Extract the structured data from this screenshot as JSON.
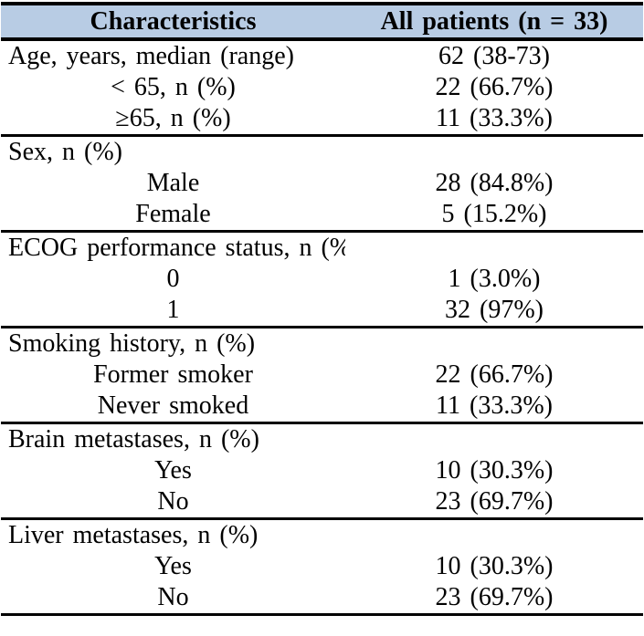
{
  "table": {
    "title_semantic": "Patient baseline characteristics table",
    "header": {
      "col1": "Characteristics",
      "col2": "All patients (n = 33)"
    },
    "sections": [
      {
        "rows": [
          {
            "label": "Age, years, median (range)",
            "value": "62 (38-73)",
            "indent": false
          },
          {
            "label": "< 65, n (%)",
            "value": "22 (66.7%)",
            "indent": true
          },
          {
            "label": "≥65, n (%)",
            "value": "11 (33.3%)",
            "indent": true
          }
        ]
      },
      {
        "rows": [
          {
            "label": "Sex, n (%)",
            "value": "",
            "indent": false
          },
          {
            "label": "Male",
            "value": "28 (84.8%)",
            "indent": true
          },
          {
            "label": "Female",
            "value": "5 (15.2%)",
            "indent": true
          }
        ]
      },
      {
        "rows": [
          {
            "label": "ECOG performance status, n (%)",
            "value": "",
            "indent": false
          },
          {
            "label": "0",
            "value": "1 (3.0%)",
            "indent": true
          },
          {
            "label": "1",
            "value": "32 (97%)",
            "indent": true
          }
        ]
      },
      {
        "rows": [
          {
            "label": "Smoking history, n (%)",
            "value": "",
            "indent": false
          },
          {
            "label": "Former smoker",
            "value": "22 (66.7%)",
            "indent": true
          },
          {
            "label": "Never smoked",
            "value": "11 (33.3%)",
            "indent": true
          }
        ]
      },
      {
        "rows": [
          {
            "label": "Brain metastases, n (%)",
            "value": "",
            "indent": false
          },
          {
            "label": "Yes",
            "value": "10 (30.3%)",
            "indent": true
          },
          {
            "label": "No",
            "value": "23 (69.7%)",
            "indent": true
          }
        ]
      },
      {
        "rows": [
          {
            "label": "Liver metastases, n (%)",
            "value": "",
            "indent": false
          },
          {
            "label": "Yes",
            "value": "10 (30.3%)",
            "indent": true
          },
          {
            "label": "No",
            "value": "23 (69.7%)",
            "indent": true
          }
        ]
      }
    ],
    "colors": {
      "header_bg": "#b8cce4",
      "border": "#000000",
      "text": "#000000",
      "page_bg": "#ffffff"
    }
  }
}
